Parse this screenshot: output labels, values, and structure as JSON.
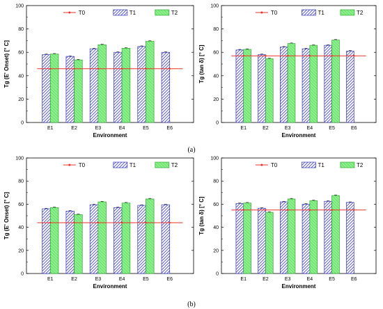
{
  "captions": [
    "(a)",
    "(b)"
  ],
  "colors": {
    "T0": "#e8322a",
    "T1": "#3434b8",
    "T2": "#5ee05e",
    "T1_fill": "#ffffff",
    "T2_fill": "#8cf08c"
  },
  "chart_data": [
    {
      "type": "bar",
      "xlabel": "Environment",
      "ylabel": "Tg (E' Onset) [° C]",
      "ylim": [
        0,
        100
      ],
      "yticks": [
        0,
        20,
        40,
        60,
        80,
        100
      ],
      "categories": [
        "E1",
        "E2",
        "E3",
        "E4",
        "E5",
        "E6"
      ],
      "legend_position": "top",
      "series": [
        {
          "name": "T0",
          "kind": "line",
          "values": [
            46,
            46,
            46,
            46,
            46,
            46
          ]
        },
        {
          "name": "T1",
          "kind": "bar",
          "values": [
            58,
            56.5,
            63,
            60,
            65,
            60
          ]
        },
        {
          "name": "T2",
          "kind": "bar",
          "values": [
            58.5,
            53.5,
            66.5,
            63.5,
            69.5,
            null
          ]
        }
      ]
    },
    {
      "type": "bar",
      "xlabel": "Environment",
      "ylabel": "Tg (tan δ) [° C]",
      "ylim": [
        0,
        100
      ],
      "yticks": [
        0,
        20,
        40,
        60,
        80,
        100
      ],
      "categories": [
        "E1",
        "E2",
        "E3",
        "E4",
        "E5",
        "E6"
      ],
      "legend_position": "top",
      "series": [
        {
          "name": "T0",
          "kind": "line",
          "values": [
            57,
            57,
            57,
            57,
            57,
            57
          ]
        },
        {
          "name": "T1",
          "kind": "bar",
          "values": [
            62,
            58,
            64.5,
            63,
            66,
            61
          ]
        },
        {
          "name": "T2",
          "kind": "bar",
          "values": [
            62.5,
            54.5,
            67.5,
            66,
            70.5,
            null
          ]
        }
      ]
    },
    {
      "type": "bar",
      "xlabel": "Environment",
      "ylabel": "Tg (E' Onset) [° C]",
      "ylim": [
        0,
        100
      ],
      "yticks": [
        0,
        20,
        40,
        60,
        80,
        100
      ],
      "categories": [
        "E1",
        "E2",
        "E3",
        "E4",
        "E5",
        "E6"
      ],
      "legend_position": "top",
      "series": [
        {
          "name": "T0",
          "kind": "line",
          "values": [
            44,
            44,
            44,
            44,
            44,
            44
          ]
        },
        {
          "name": "T1",
          "kind": "bar",
          "values": [
            56,
            54,
            59.5,
            57,
            59,
            59.5
          ]
        },
        {
          "name": "T2",
          "kind": "bar",
          "values": [
            57,
            51,
            62,
            61,
            64.5,
            null
          ]
        }
      ]
    },
    {
      "type": "bar",
      "xlabel": "Environment",
      "ylabel": "Tg (tan δ) [° C]",
      "ylim": [
        0,
        100
      ],
      "yticks": [
        0,
        20,
        40,
        60,
        80,
        100
      ],
      "categories": [
        "E1",
        "E2",
        "E3",
        "E4",
        "E5",
        "E6"
      ],
      "legend_position": "top",
      "series": [
        {
          "name": "T0",
          "kind": "line",
          "values": [
            55,
            55,
            55,
            55,
            55,
            55
          ]
        },
        {
          "name": "T1",
          "kind": "bar",
          "values": [
            60.5,
            56.5,
            62,
            60,
            62.5,
            61.5
          ]
        },
        {
          "name": "T2",
          "kind": "bar",
          "values": [
            61,
            53,
            64.5,
            63,
            67.5,
            null
          ]
        }
      ]
    }
  ]
}
